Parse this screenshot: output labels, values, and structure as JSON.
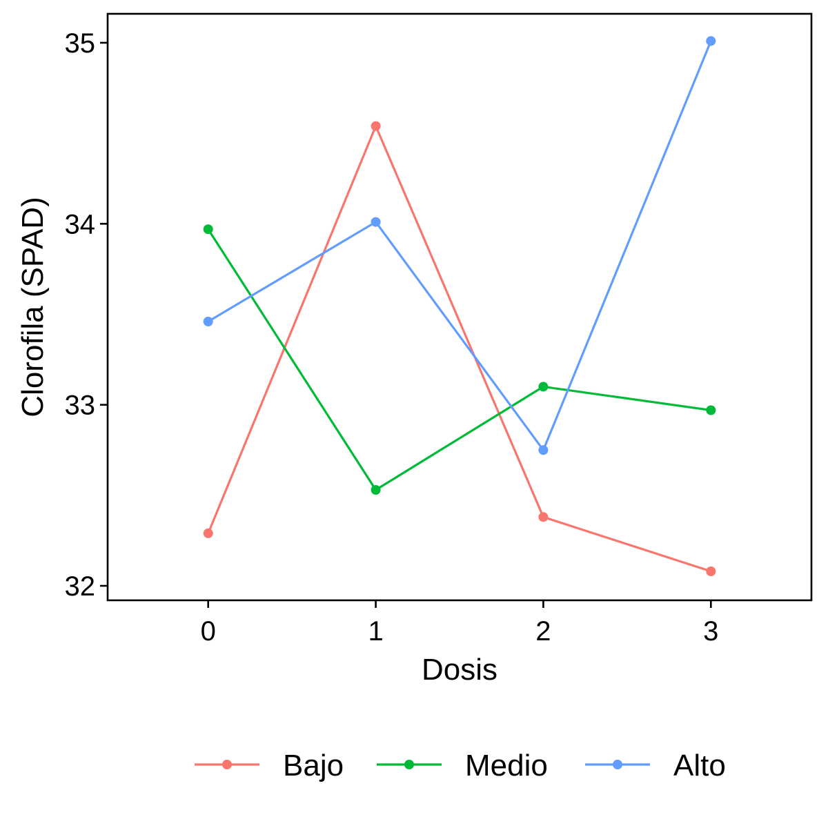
{
  "chart_data": {
    "type": "line",
    "x": [
      0,
      1,
      2,
      3
    ],
    "xticks": [
      "0",
      "1",
      "2",
      "3"
    ],
    "yticks": [
      "32",
      "33",
      "34",
      "35"
    ],
    "xlabel": "Dosis",
    "ylabel": "Clorofila (SPAD)",
    "xlim": [
      -0.6,
      3.6
    ],
    "ylim": [
      31.92,
      35.16
    ],
    "grid": false,
    "legend_position": "bottom",
    "series": [
      {
        "name": "Bajo",
        "color": "#F8766D",
        "values": [
          32.29,
          34.54,
          32.38,
          32.08
        ]
      },
      {
        "name": "Medio",
        "color": "#00BA38",
        "values": [
          33.97,
          32.53,
          33.1,
          32.97
        ]
      },
      {
        "name": "Alto",
        "color": "#619CFF",
        "values": [
          33.46,
          34.01,
          32.75,
          35.01
        ]
      }
    ]
  }
}
